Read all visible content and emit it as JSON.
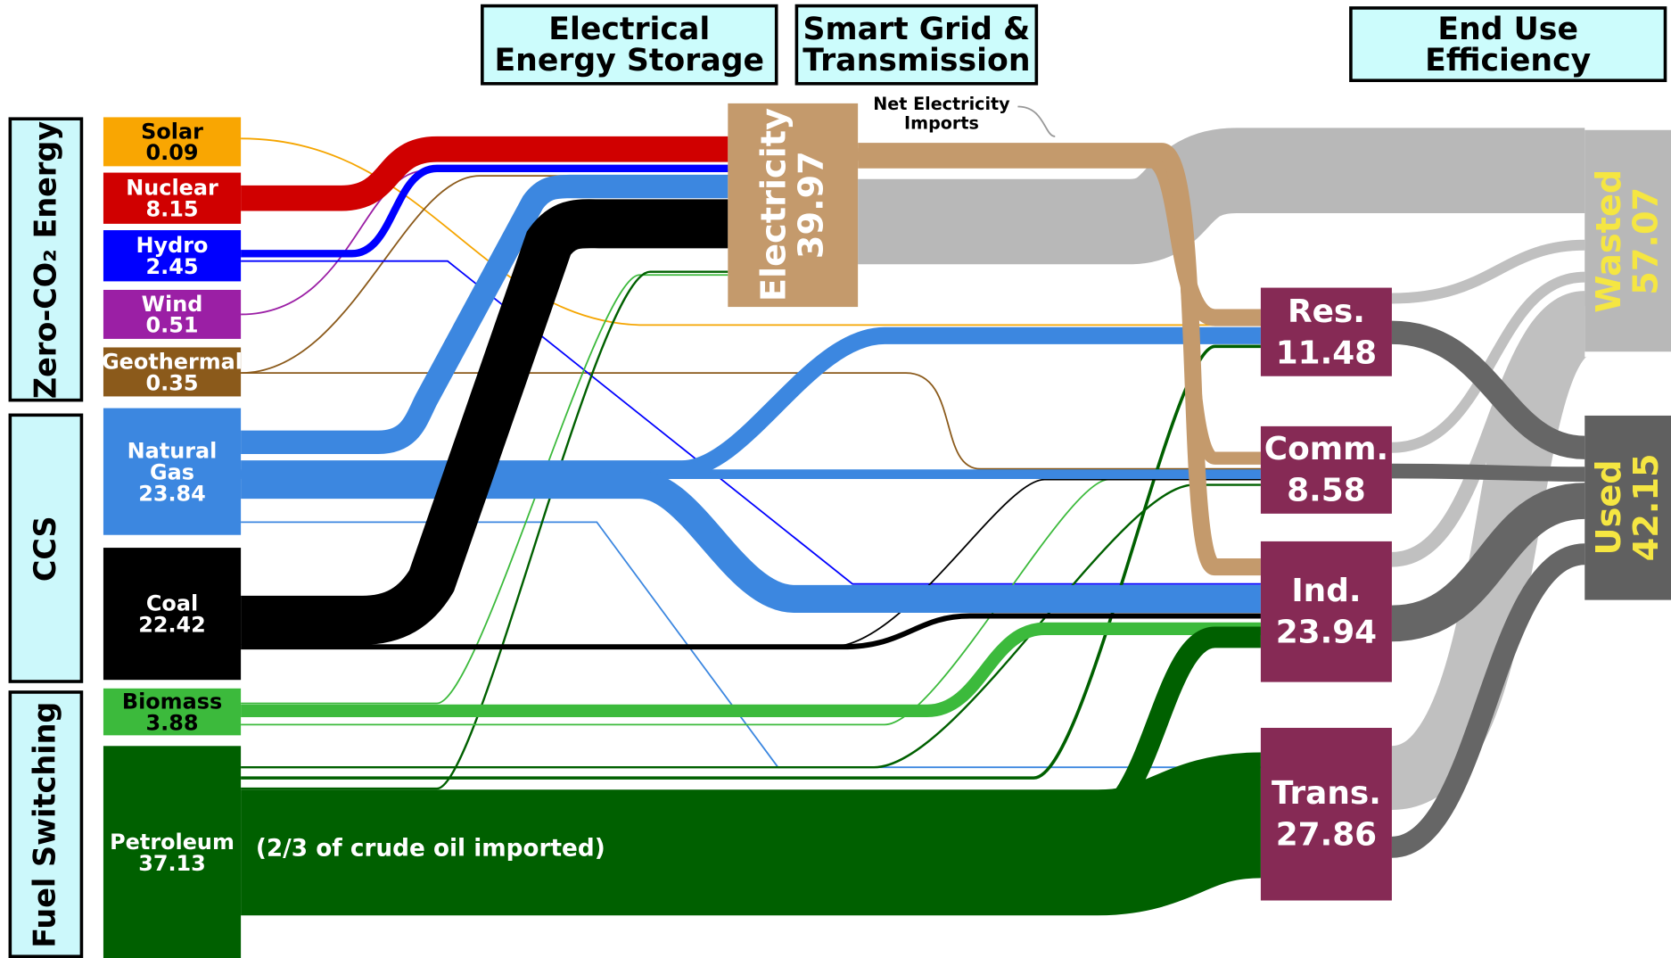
{
  "categories": [
    {
      "label": "Zero-CO₂ Energy"
    },
    {
      "label": "CCS"
    },
    {
      "label": "Fuel Switching"
    }
  ],
  "headers": [
    {
      "label": "Electrical Energy Storage"
    },
    {
      "label": "Smart Grid & Transmission"
    },
    {
      "label": "End Use Efficiency"
    }
  ],
  "sources": [
    {
      "label": "Solar",
      "value": 0.09
    },
    {
      "label": "Nuclear",
      "value": 8.15
    },
    {
      "label": "Hydro",
      "value": 2.45
    },
    {
      "label": "Wind",
      "value": 0.51
    },
    {
      "label": "Geothermal",
      "value": 0.35
    },
    {
      "label": "Natural Gas",
      "value": 23.84
    },
    {
      "label": "Coal",
      "value": 22.42
    },
    {
      "label": "Biomass",
      "value": 3.88
    },
    {
      "label": "Petroleum",
      "value": 37.13
    }
  ],
  "hub": {
    "label": "Electricity",
    "value": 39.97
  },
  "sectors": [
    {
      "label": "Res.",
      "value": 11.48
    },
    {
      "label": "Comm.",
      "value": 8.58
    },
    {
      "label": "Ind.",
      "value": 23.94
    },
    {
      "label": "Trans.",
      "value": 27.86
    }
  ],
  "outcomes": [
    {
      "label": "Wasted",
      "value": 57.07
    },
    {
      "label": "Used",
      "value": 42.15
    }
  ],
  "annotations": {
    "net_imports": "Net Electricity Imports",
    "petroleum_note": "(2/3 of crude oil imported)"
  }
}
